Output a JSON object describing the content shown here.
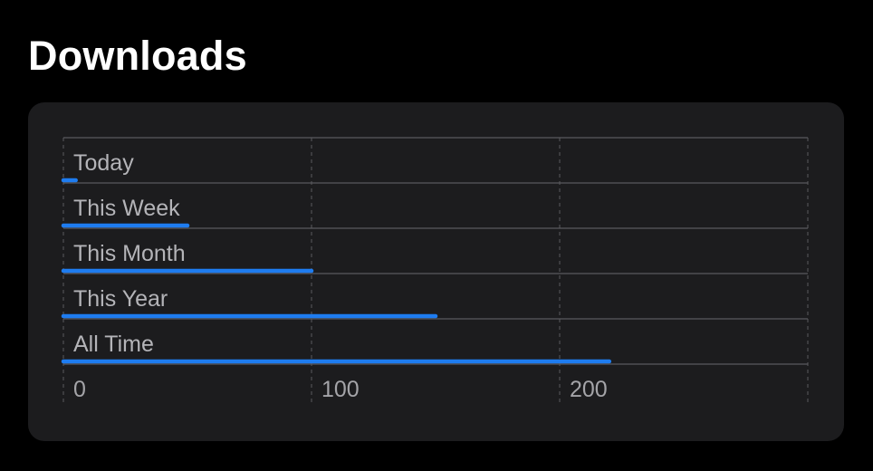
{
  "header": {
    "title": "Downloads"
  },
  "colors": {
    "background": "#000000",
    "card": "#1c1c1e",
    "bar": "#1e7cf0",
    "gridline": "#5a5a5e"
  },
  "chart_data": {
    "type": "bar",
    "orientation": "horizontal",
    "categories": [
      "Today",
      "This Week",
      "This Month",
      "This Year",
      "All Time"
    ],
    "values": [
      5,
      50,
      100,
      150,
      220
    ],
    "xlim": [
      0,
      300
    ],
    "xticks": [
      0,
      100,
      200
    ],
    "tick_labels": [
      "0",
      "100",
      "200"
    ],
    "title": "Downloads",
    "xlabel": "",
    "ylabel": "",
    "grid": true
  }
}
